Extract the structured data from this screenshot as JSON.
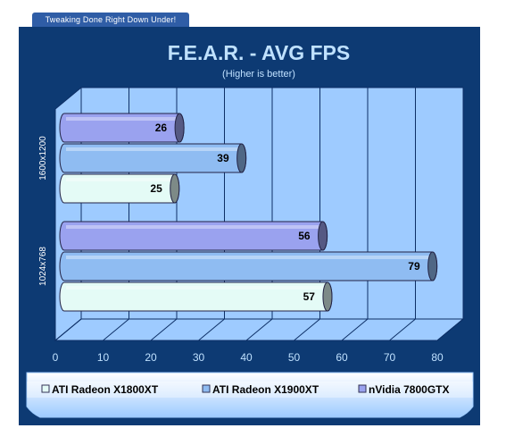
{
  "banner": {
    "tagline": "Tweaking Done Right Down Under!"
  },
  "colors": {
    "frame": "#0d3a73",
    "plot_back": "#9ecbff",
    "grid": "#0d2f66",
    "text_light": "#bfe1ff",
    "legend_bg": "#9ecbff"
  },
  "chart_data": {
    "type": "bar",
    "orientation": "horizontal",
    "style": "3d-cylinder",
    "title": "F.E.A.R. - AVG FPS",
    "subtitle": "(Higher is better)",
    "categories": [
      "1600x1200",
      "1024x768"
    ],
    "series": [
      {
        "name": "ATI Radeon X1800XT",
        "color": "#e4fbf6",
        "values": [
          25,
          57
        ]
      },
      {
        "name": "ATI Radeon X1900XT",
        "color": "#8fbcf2",
        "values": [
          39,
          79
        ]
      },
      {
        "name": "nVidia 7800GTX",
        "color": "#9aa2ef",
        "values": [
          26,
          56
        ]
      }
    ],
    "xlim": [
      0,
      80
    ],
    "xticks": [
      0,
      10,
      20,
      30,
      40,
      50,
      60,
      70,
      80
    ],
    "grid": true,
    "legend": "bottom"
  }
}
